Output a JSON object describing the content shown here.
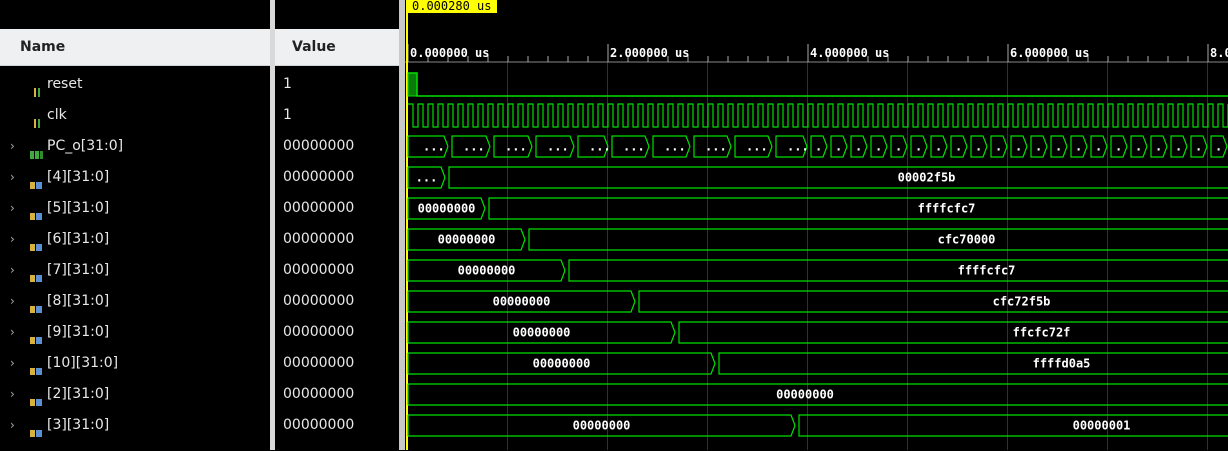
{
  "header": {
    "name_label": "Name",
    "value_label": "Value"
  },
  "cursor_time": "0.000280 us",
  "ruler": [
    "0.000000 us",
    "2.000000 us",
    "4.000000 us",
    "6.000000 us",
    "8.0"
  ],
  "signals": [
    {
      "name": "reset",
      "value": "1",
      "icon": "bit-signal-icon",
      "expandable": false
    },
    {
      "name": "clk",
      "value": "1",
      "icon": "bit-signal-icon",
      "expandable": false
    },
    {
      "name": "PC_o[31:0]",
      "value": "00000000",
      "icon": "bus-signal-icon",
      "expandable": true
    },
    {
      "name": "[4][31:0]",
      "value": "00000000",
      "icon": "array-element-icon",
      "expandable": true
    },
    {
      "name": "[5][31:0]",
      "value": "00000000",
      "icon": "array-element-icon",
      "expandable": true
    },
    {
      "name": "[6][31:0]",
      "value": "00000000",
      "icon": "array-element-icon",
      "expandable": true
    },
    {
      "name": "[7][31:0]",
      "value": "00000000",
      "icon": "array-element-icon",
      "expandable": true
    },
    {
      "name": "[8][31:0]",
      "value": "00000000",
      "icon": "array-element-icon",
      "expandable": true
    },
    {
      "name": "[9][31:0]",
      "value": "00000000",
      "icon": "array-element-icon",
      "expandable": true
    },
    {
      "name": "[10][31:0]",
      "value": "00000000",
      "icon": "array-element-icon",
      "expandable": true
    },
    {
      "name": "[2][31:0]",
      "value": "00000000",
      "icon": "array-element-icon",
      "expandable": true
    },
    {
      "name": "[3][31:0]",
      "value": "00000000",
      "icon": "array-element-icon",
      "expandable": true
    }
  ],
  "waves": {
    "pc_label": "...",
    "buses": [
      {
        "before": "...",
        "after": "00002f5b"
      },
      {
        "before": "00000000",
        "after": "ffffcfc7"
      },
      {
        "before": "00000000",
        "after": "cfc70000"
      },
      {
        "before": "00000000",
        "after": "ffffcfc7"
      },
      {
        "before": "00000000",
        "after": "cfc72f5b"
      },
      {
        "before": "00000000",
        "after": "ffcfc72f"
      },
      {
        "before": "00000000",
        "after": "ffffd0a5"
      },
      {
        "before": "00000000",
        "after": ""
      },
      {
        "before": "00000000",
        "after": "00000001"
      }
    ]
  },
  "colors": {
    "wave": "#00e000",
    "cursor": "#ffff00",
    "grid": "#303030"
  }
}
